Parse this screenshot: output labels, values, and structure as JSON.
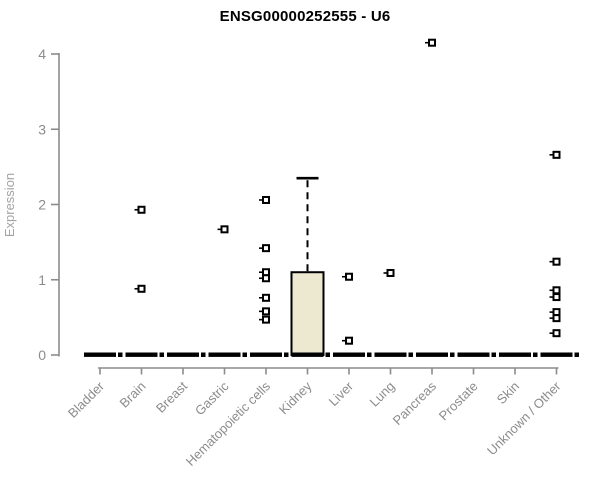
{
  "chart_data": {
    "type": "boxplot",
    "title": "ENSG00000252555 - U6",
    "ylabel": "Expression",
    "xlabel": "",
    "ylim": [
      0,
      4.2
    ],
    "yticks": [
      "0",
      "1",
      "2",
      "3",
      "4"
    ],
    "grid": false,
    "legend": "none",
    "categories": [
      "Bladder",
      "Brain",
      "Breast",
      "Gastric",
      "Hematopoietic cells",
      "Kidney",
      "Liver",
      "Lung",
      "Pancreas",
      "Prostate",
      "Skin",
      "Unknown / Other"
    ],
    "series": [
      {
        "category": "Bladder",
        "median": 0,
        "q1": 0,
        "q3": 0,
        "outliers": []
      },
      {
        "category": "Brain",
        "median": 0,
        "q1": 0,
        "q3": 0,
        "outliers": [
          1.93,
          0.88
        ]
      },
      {
        "category": "Breast",
        "median": 0,
        "q1": 0,
        "q3": 0,
        "outliers": []
      },
      {
        "category": "Gastric",
        "median": 0,
        "q1": 0,
        "q3": 0,
        "outliers": [
          1.67
        ]
      },
      {
        "category": "Hematopoietic cells",
        "median": 0,
        "q1": 0,
        "q3": 0,
        "outliers": [
          2.06,
          1.42,
          1.1,
          1.02,
          0.76,
          0.58,
          0.47
        ]
      },
      {
        "category": "Kidney",
        "median": 0,
        "q1": 0,
        "q3": 1.1,
        "whisker_high": 2.35,
        "outliers": []
      },
      {
        "category": "Liver",
        "median": 0,
        "q1": 0,
        "q3": 0,
        "outliers": [
          1.04,
          0.19
        ]
      },
      {
        "category": "Lung",
        "median": 0,
        "q1": 0,
        "q3": 0,
        "outliers": [
          1.09
        ]
      },
      {
        "category": "Pancreas",
        "median": 0,
        "q1": 0,
        "q3": 0,
        "outliers": [
          4.15
        ]
      },
      {
        "category": "Prostate",
        "median": 0,
        "q1": 0,
        "q3": 0,
        "outliers": []
      },
      {
        "category": "Skin",
        "median": 0,
        "q1": 0,
        "q3": 0,
        "outliers": []
      },
      {
        "category": "Unknown / Other",
        "median": 0,
        "q1": 0,
        "q3": 0,
        "outliers": [
          2.66,
          1.24,
          0.86,
          0.77,
          0.57,
          0.49,
          0.29
        ]
      }
    ],
    "colors": {
      "box_fill": "#EDE8D0",
      "box_border": "#000000",
      "zero_bar": "#000000",
      "marker": "#000000",
      "marker_fill": "#FFFFFF",
      "axis": "#8C8C8C",
      "tick_label": "#8C8C8C",
      "y_axis_label": "#A3A3A3",
      "title": "#000000",
      "background": "#FFFFFF"
    }
  }
}
